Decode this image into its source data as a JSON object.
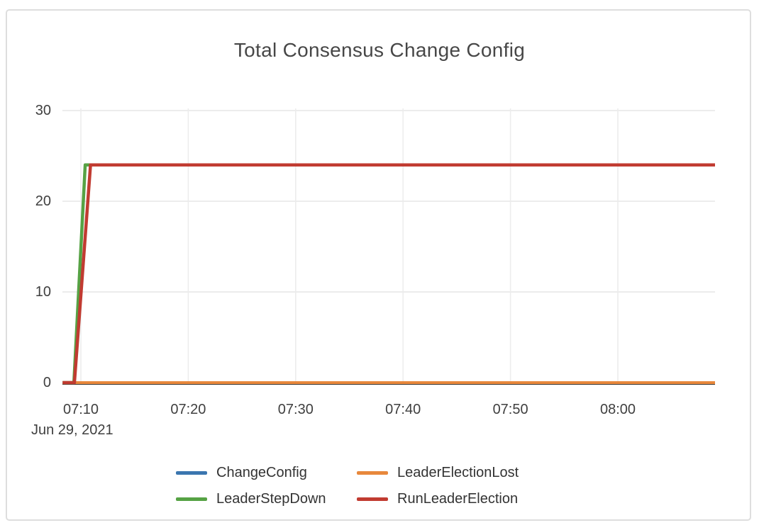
{
  "card": {
    "border_color": "#dedede"
  },
  "chart_data": {
    "type": "line",
    "title": "Total Consensus Change Config",
    "xlabel": "",
    "ylabel": "",
    "grid": true,
    "legend_position": "bottom",
    "x_axis": {
      "date_label": "Jun 29, 2021",
      "unit": "minutes_since_midnight",
      "ticks": [
        {
          "m": 430,
          "label": "07:10"
        },
        {
          "m": 440,
          "label": "07:20"
        },
        {
          "m": 450,
          "label": "07:30"
        },
        {
          "m": 460,
          "label": "07:40"
        },
        {
          "m": 470,
          "label": "07:50"
        },
        {
          "m": 480,
          "label": "08:00"
        }
      ],
      "range_minutes": [
        428.3,
        489.05
      ]
    },
    "y_axis": {
      "ticks": [
        0,
        10,
        20,
        30
      ],
      "range": [
        0,
        30.9
      ]
    },
    "colors": {
      "grid": "#ececec",
      "zero_line": "#3c3c3c",
      "axis_text": "#3f3f3f",
      "title_text": "#474747",
      "legend_text": "#333333"
    },
    "plateau_value": 24,
    "series": [
      {
        "name": "ChangeConfig",
        "color": "#3b76af",
        "width": 4,
        "points": [
          [
            428.3,
            0
          ],
          [
            489.05,
            0
          ]
        ]
      },
      {
        "name": "LeaderElectionLost",
        "color": "#e8883c",
        "width": 4,
        "points": [
          [
            428.3,
            0
          ],
          [
            489.05,
            0
          ]
        ]
      },
      {
        "name": "LeaderStepDown",
        "color": "#56a244",
        "width": 4.5,
        "points": [
          [
            428.3,
            0
          ],
          [
            429.35,
            0
          ],
          [
            430.4,
            24
          ],
          [
            489.05,
            24
          ]
        ]
      },
      {
        "name": "RunLeaderElection",
        "color": "#c13b31",
        "width": 4.5,
        "points": [
          [
            428.3,
            0
          ],
          [
            429.4,
            0
          ],
          [
            430.9,
            24
          ],
          [
            489.05,
            24
          ]
        ]
      }
    ]
  }
}
